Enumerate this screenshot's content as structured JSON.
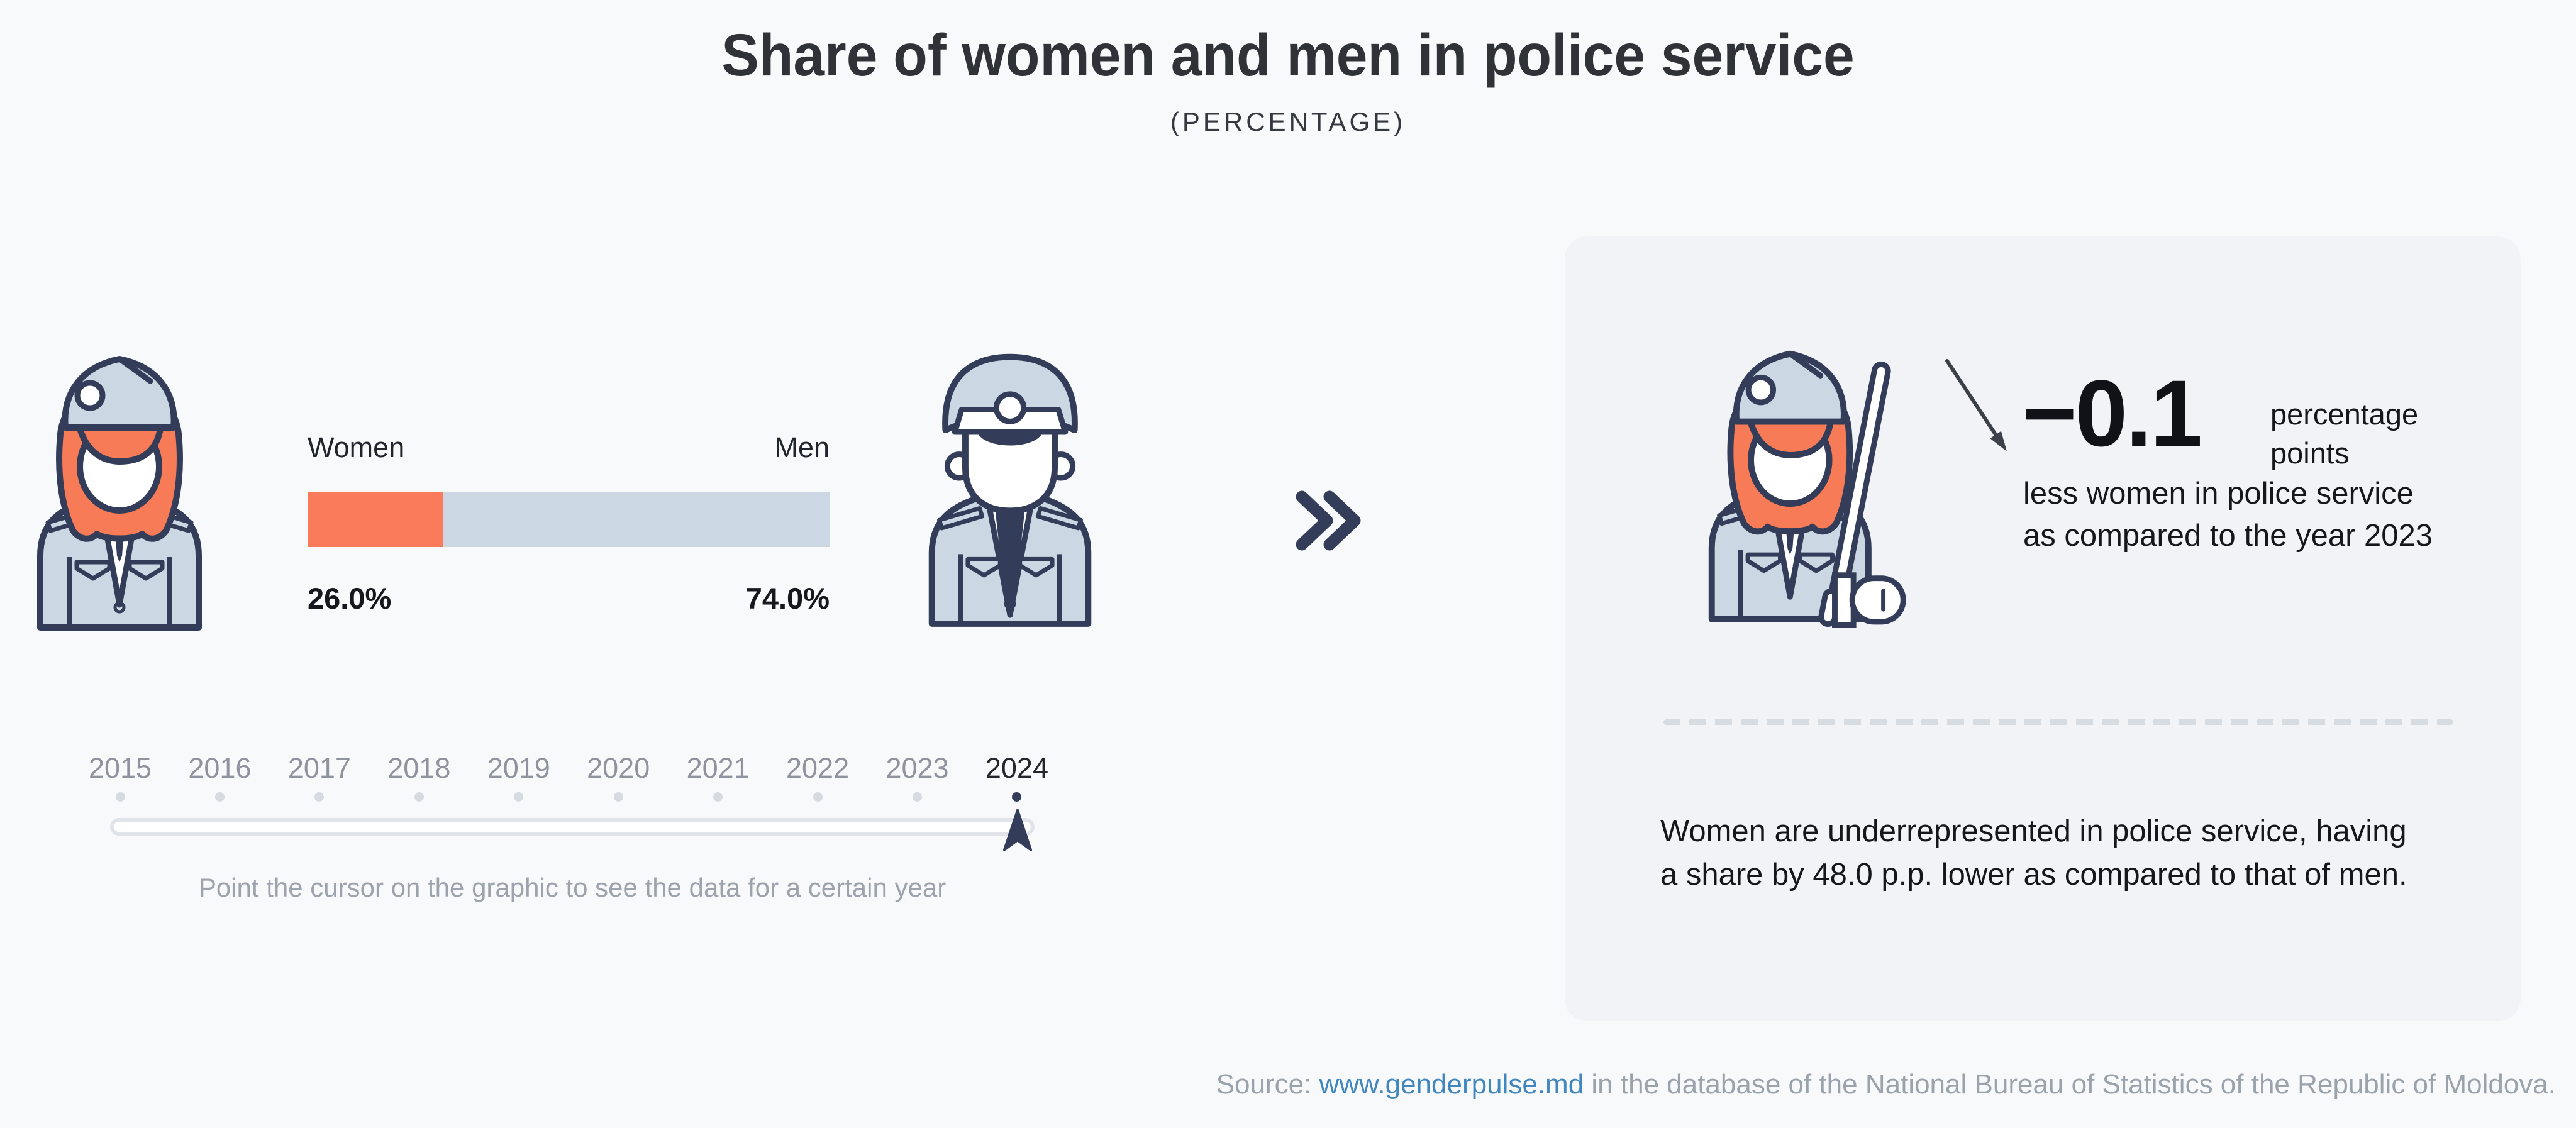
{
  "header": {
    "title": "Share of women and men in police service",
    "subtitle": "(PERCENTAGE)"
  },
  "chart_data": {
    "type": "bar",
    "title": "Share of women and men in police service",
    "subtitle": "(PERCENTAGE)",
    "unit": "percentage",
    "categories": [
      "Women",
      "Men"
    ],
    "values": [
      26.0,
      74.0
    ],
    "value_labels": [
      "26.0%",
      "74.0%"
    ],
    "colors": {
      "women": "#F97B5B",
      "men": "#CBD8E3"
    },
    "selected_year": "2024",
    "timeline_years": [
      "2015",
      "2016",
      "2017",
      "2018",
      "2019",
      "2020",
      "2021",
      "2022",
      "2023",
      "2024"
    ],
    "change_vs_previous_year": {
      "value": -0.1,
      "unit": "percentage points",
      "compared_to_year": "2023"
    },
    "gap_percentage_points": 48.0
  },
  "bar": {
    "women_label": "Women",
    "men_label": "Men",
    "women_value": "26.0%",
    "men_value": "74.0%"
  },
  "timeline": {
    "hint": "Point the cursor on the graphic to see the data for a certain year"
  },
  "card": {
    "delta_value": "−0.1",
    "delta_unit": "percentage points",
    "delta_description": "less women in police service as compared to the year 2023",
    "summary": "Women are underrepresented in police service, having a share by 48.0 p.p. lower as compared to that of men."
  },
  "source": {
    "prefix": "Source: ",
    "link_text": "www.genderpulse.md",
    "suffix": " in the database of the National Bureau of Statistics of the Republic of Moldova."
  },
  "icons": {
    "policewoman": "policewoman-icon",
    "policeman": "policeman-icon",
    "policewoman_baton": "policewoman-baton-icon",
    "double_chevron": "double-chevron-right-icon",
    "year_marker": "year-marker-icon",
    "decrease_arrow": "decrease-arrow-icon",
    "accent_colors": {
      "outline_navy": "#333D59",
      "uniform_blue": "#CBD8E3",
      "hair_orange": "#F87B57"
    }
  }
}
